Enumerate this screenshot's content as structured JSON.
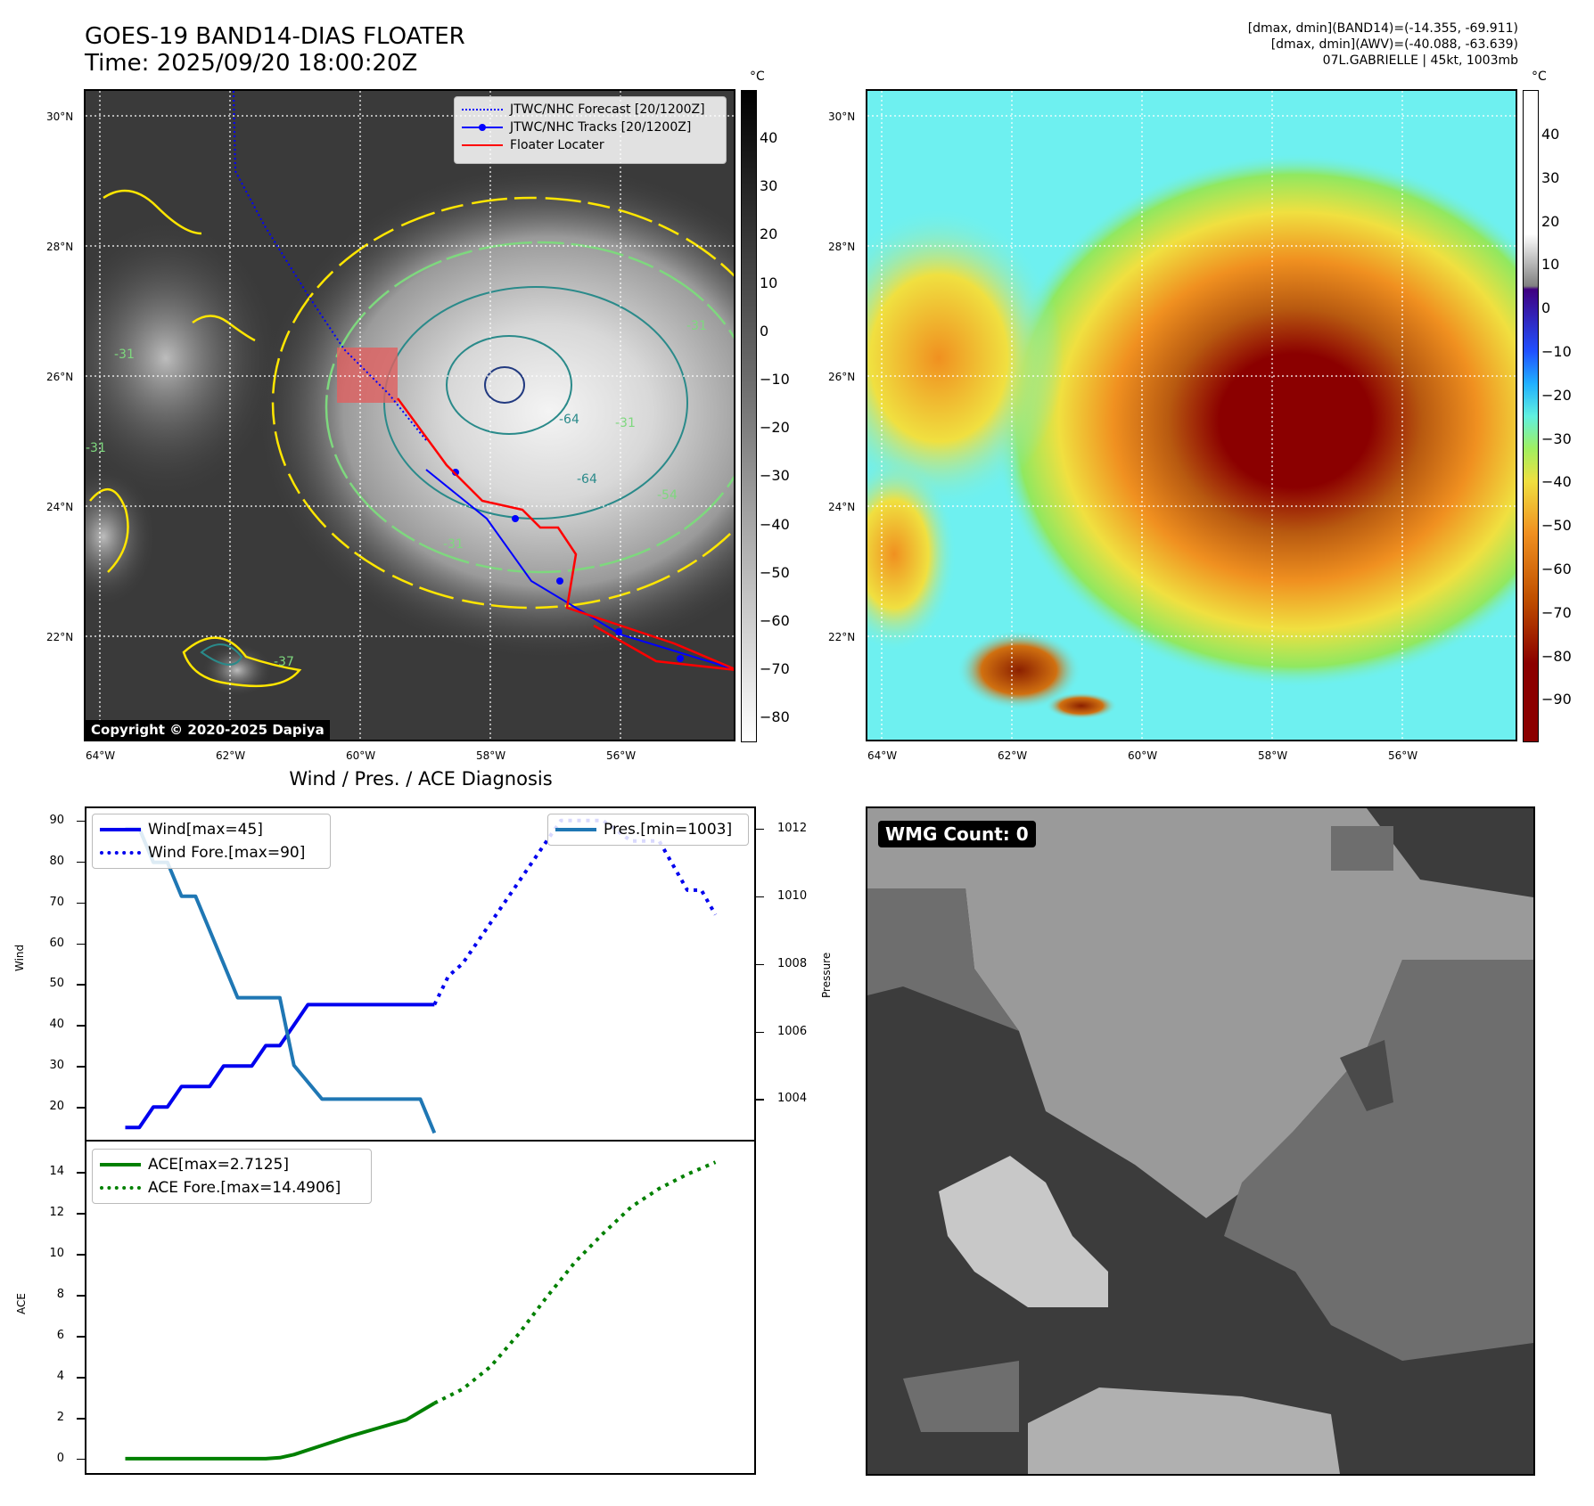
{
  "header": {
    "title_line1": "GOES-19 BAND14-DIAS FLOATER",
    "title_line2": "Time: 2025/09/20 18:00:20Z",
    "info_line1": "[dmax, dmin](BAND14)=(-14.355, -69.911)",
    "info_line2": "[dmax, dmin](AWV)=(-40.088, -63.639)",
    "info_line3": "07L.GABRIELLE | 45kt, 1003mb"
  },
  "map_axes": {
    "lat_labels": [
      "30°N",
      "28°N",
      "26°N",
      "24°N",
      "22°N"
    ],
    "lon_labels": [
      "64°W",
      "62°W",
      "60°W",
      "58°W",
      "56°W"
    ]
  },
  "ir_panel": {
    "legend": [
      "JTWC/NHC Forecast [20/1200Z]",
      "JTWC/NHC Tracks [20/1200Z]",
      "Floater Locater"
    ],
    "copyright": "Copyright © 2020-2025 Dapiya",
    "contour_labels": [
      "-31",
      "-31",
      "-31",
      "-31",
      "-64",
      "-64",
      "-54",
      "-31",
      "-37"
    ],
    "colorbar_unit": "°C",
    "colorbar_ticks": [
      "40",
      "30",
      "20",
      "10",
      "0",
      "−10",
      "−20",
      "−30",
      "−40",
      "−50",
      "−60",
      "−70",
      "−80"
    ],
    "colors": {
      "forecast": "#0000ff",
      "track": "#0000ff",
      "locater": "#ff0000",
      "cold_contour": "#ffe600",
      "mid_contour": "#7ed87e",
      "deep_contour": "#2a8a8a"
    }
  },
  "awv_panel": {
    "colorbar_unit": "°C",
    "colorbar_ticks": [
      "40",
      "30",
      "20",
      "10",
      "0",
      "−10",
      "−20",
      "−30",
      "−40",
      "−50",
      "−60",
      "−70",
      "−80",
      "−90"
    ]
  },
  "diag": {
    "title": "Wind / Pres. / ACE Diagnosis",
    "wind_ylabel": "Wind",
    "pres_ylabel": "Pressure",
    "ace_ylabel": "ACE",
    "wind_ticks": [
      "90",
      "80",
      "70",
      "60",
      "50",
      "40",
      "30",
      "20"
    ],
    "pres_ticks": [
      "1012",
      "1010",
      "1008",
      "1006",
      "1004"
    ],
    "ace_ticks": [
      "14",
      "12",
      "10",
      "8",
      "6",
      "4",
      "2",
      "0"
    ],
    "legend_wind": "Wind[max=45]",
    "legend_wind_fore": "Wind Fore.[max=90]",
    "legend_pres": "Pres.[min=1003]",
    "legend_ace": "ACE[max=2.7125]",
    "legend_ace_fore": "ACE Fore.[max=14.4906]"
  },
  "wmg_panel": {
    "label": "WMG Count: 0"
  },
  "chart_data": [
    {
      "type": "line",
      "title": "Wind / Pres. / ACE Diagnosis",
      "ylabel": "Wind",
      "ylim": [
        12,
        93
      ],
      "xlim": [
        0,
        23
      ],
      "series": [
        {
          "name": "Wind[max=45]",
          "style": "solid",
          "color": "#0000ee",
          "x": [
            1,
            1.5,
            2,
            2.5,
            3,
            3.5,
            4,
            4.5,
            5,
            5.5,
            6,
            6.5,
            7,
            7.5,
            8,
            8.5,
            9,
            9.5,
            10,
            10.5,
            11,
            11.5,
            12
          ],
          "values": [
            15,
            15,
            20,
            20,
            25,
            25,
            25,
            30,
            30,
            30,
            35,
            35,
            40,
            45,
            45,
            45,
            45,
            45,
            45,
            45,
            45,
            45,
            45
          ]
        },
        {
          "name": "Wind Fore.[max=90]",
          "style": "dotted",
          "color": "#0000ee",
          "x": [
            12,
            12.5,
            13,
            14,
            15,
            16,
            16.5,
            17,
            18,
            19,
            20,
            21,
            21.5,
            22
          ],
          "values": [
            45,
            52,
            55,
            65,
            75,
            85,
            90,
            90,
            90,
            85,
            85,
            73,
            73,
            67
          ]
        }
      ]
    },
    {
      "type": "line",
      "ylabel": "Pressure",
      "ylim": [
        1002.8,
        1012.6
      ],
      "series": [
        {
          "name": "Pres.[min=1003]",
          "style": "solid",
          "color": "#1f77b4",
          "x": [
            1,
            1.5,
            2,
            2.5,
            3,
            3.5,
            4,
            5,
            6,
            6.5,
            7,
            8,
            9,
            10,
            11,
            11.5,
            12
          ],
          "values": [
            1012,
            1012,
            1011,
            1011,
            1010,
            1010,
            1009,
            1007,
            1007,
            1007,
            1005,
            1004,
            1004,
            1004,
            1004,
            1004,
            1003
          ]
        }
      ]
    },
    {
      "type": "line",
      "ylabel": "ACE",
      "ylim": [
        -0.7,
        15.5
      ],
      "series": [
        {
          "name": "ACE[max=2.7125]",
          "style": "solid",
          "color": "#008000",
          "x": [
            1,
            3,
            5,
            6,
            6.5,
            7,
            8,
            9,
            10,
            11,
            12
          ],
          "values": [
            0,
            0,
            0,
            0,
            0.05,
            0.2,
            0.65,
            1.1,
            1.5,
            1.9,
            2.7125
          ]
        },
        {
          "name": "ACE Fore.[max=14.4906]",
          "style": "dotted",
          "color": "#008000",
          "x": [
            12,
            13,
            14,
            15,
            16,
            17,
            18,
            19,
            20,
            21,
            22
          ],
          "values": [
            2.7125,
            3.4,
            4.5,
            6.1,
            7.9,
            9.6,
            11.0,
            12.3,
            13.2,
            13.9,
            14.4906
          ]
        }
      ]
    }
  ]
}
